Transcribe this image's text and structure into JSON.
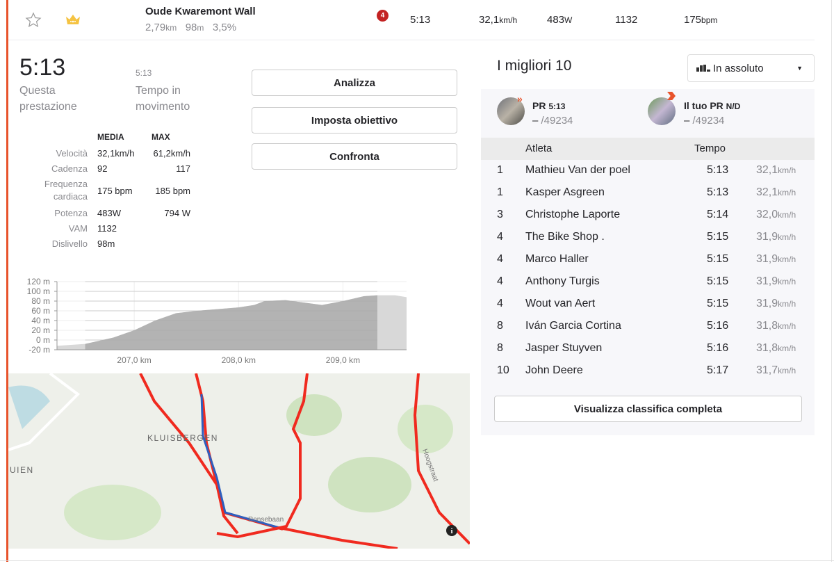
{
  "segment": {
    "name": "Oude Kwaremont Wall",
    "distance": "2,79",
    "distance_unit": "km",
    "elevation": "98",
    "elevation_unit": "m",
    "grade": "3,5%",
    "badge": "4",
    "time": "5:13",
    "speed": "32,1",
    "speed_unit": "km/h",
    "power": "483",
    "power_unit": "W",
    "vam": "1132",
    "hr": "175",
    "hr_unit": "bpm"
  },
  "effort": {
    "time": "5:13",
    "time_label": "Questa prestazione",
    "moving_time": "5:13",
    "moving_label": "Tempo in movimento"
  },
  "actions": {
    "analyze": "Analizza",
    "goal": "Imposta obiettivo",
    "compare": "Confronta"
  },
  "stats": {
    "col_avg": "MEDIA",
    "col_max": "MAX",
    "rows": [
      {
        "label": "Velocità",
        "avg": "32,1km/h",
        "max": "61,2km/h"
      },
      {
        "label": "Cadenza",
        "avg": "92",
        "max": "117"
      },
      {
        "label": "Frequenza cardiaca",
        "avg": "175 bpm",
        "max": "185 bpm"
      },
      {
        "label": "Potenza",
        "avg": "483W",
        "max": "794 W"
      },
      {
        "label": "VAM",
        "avg": "1132",
        "max": ""
      },
      {
        "label": "Dislivello",
        "avg": "98m",
        "max": ""
      }
    ]
  },
  "chart_data": {
    "type": "area",
    "title": "",
    "xlabel": "",
    "ylabel": "",
    "x": [
      206.26,
      206.53,
      206.8,
      207.0,
      207.2,
      207.4,
      207.6,
      208.0,
      208.15,
      208.25,
      208.45,
      208.8,
      209.0,
      209.2,
      209.33,
      209.5,
      209.61
    ],
    "y": [
      -12,
      -8,
      5,
      20,
      40,
      55,
      60,
      67,
      72,
      80,
      82,
      72,
      80,
      90,
      92,
      92,
      88
    ],
    "highlight": [
      206.53,
      209.33
    ],
    "xlim": [
      206.26,
      209.61
    ],
    "ylim": [
      -20,
      120
    ],
    "yticks": [
      "120 m",
      "100 m",
      "80 m",
      "60 m",
      "40 m",
      "20 m",
      "0 m",
      "-20 m"
    ],
    "ytick_values": [
      120,
      100,
      80,
      60,
      40,
      20,
      0,
      -20
    ],
    "xticks": [
      "207,0 km",
      "208,0 km",
      "209,0 km"
    ],
    "xtick_values": [
      207,
      208,
      209
    ],
    "grid": true
  },
  "map": {
    "labels": [
      "KLUISBERGEN",
      "UIEN",
      "Ronsebaan",
      "Hoogstraat"
    ]
  },
  "leaderboard": {
    "title": "I migliori 10",
    "filter": "In assoluto",
    "pr": {
      "label": "PR",
      "value": "5:13",
      "rank": "–",
      "total": "/49234"
    },
    "your_pr": {
      "label": "Il tuo PR",
      "value": "N/D",
      "rank": "–",
      "total": "/49234"
    },
    "col_athlete": "Atleta",
    "col_time": "Tempo",
    "rows": [
      {
        "rank": "1",
        "name": "Mathieu Van der poel",
        "time": "5:13",
        "speed": "32,1"
      },
      {
        "rank": "1",
        "name": "Kasper Asgreen",
        "time": "5:13",
        "speed": "32,1"
      },
      {
        "rank": "3",
        "name": "Christophe Laporte",
        "time": "5:14",
        "speed": "32,0"
      },
      {
        "rank": "4",
        "name": "The Bike Shop .",
        "time": "5:15",
        "speed": "31,9"
      },
      {
        "rank": "4",
        "name": "Marco Haller",
        "time": "5:15",
        "speed": "31,9"
      },
      {
        "rank": "4",
        "name": "Anthony Turgis",
        "time": "5:15",
        "speed": "31,9"
      },
      {
        "rank": "4",
        "name": "Wout van Aert",
        "time": "5:15",
        "speed": "31,9"
      },
      {
        "rank": "8",
        "name": "Iván Garcia Cortina",
        "time": "5:16",
        "speed": "31,8"
      },
      {
        "rank": "8",
        "name": "Jasper Stuyven",
        "time": "5:16",
        "speed": "31,8"
      },
      {
        "rank": "10",
        "name": "John Deere",
        "time": "5:17",
        "speed": "31,7"
      }
    ],
    "speed_unit": "km/h",
    "full_button": "Visualizza classifica completa"
  }
}
